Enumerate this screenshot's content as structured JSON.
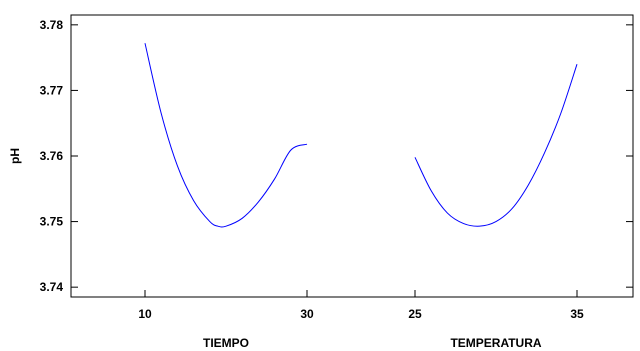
{
  "chart_data": {
    "type": "line",
    "ylabel": "pH",
    "ylim": [
      3.7385,
      3.7815
    ],
    "yticks": [
      3.74,
      3.75,
      3.76,
      3.77,
      3.78
    ],
    "ytick_labels": [
      "3.74",
      "3.75",
      "3.76",
      "3.77",
      "3.78"
    ],
    "line_color": "#0000ff",
    "grid": false,
    "panels": [
      {
        "xlabel": "TIEMPO",
        "xlim": [
          10,
          30
        ],
        "xticks": [
          10,
          30
        ],
        "xtick_labels": [
          "10",
          "30"
        ],
        "series": [
          {
            "x": [
              10,
              12,
              14,
              16,
              18,
              19,
              20,
              22,
              24,
              26,
              28,
              30
            ],
            "y": [
              3.7772,
              3.7665,
              3.7585,
              3.7532,
              3.75,
              3.7493,
              3.7493,
              3.7505,
              3.753,
              3.7565,
              3.7609,
              3.7618
            ]
          }
        ]
      },
      {
        "xlabel": "TEMPERATURA",
        "xlim": [
          25,
          35
        ],
        "xticks": [
          25,
          35
        ],
        "xtick_labels": [
          "25",
          "35"
        ],
        "series": [
          {
            "x": [
              25,
              26,
              27,
              28,
              29,
              30,
              31,
              32,
              33,
              34,
              35
            ],
            "y": [
              3.7598,
              3.7547,
              3.7513,
              3.7497,
              3.7493,
              3.75,
              3.752,
              3.7556,
              3.7605,
              3.7665,
              3.774
            ]
          }
        ]
      }
    ]
  }
}
